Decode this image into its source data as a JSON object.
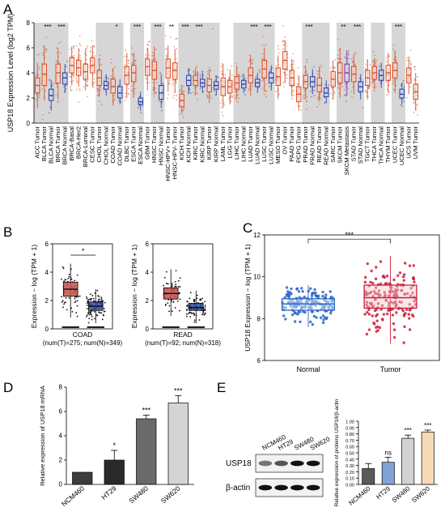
{
  "panels": {
    "A": {
      "letter": "A"
    },
    "B": {
      "letter": "B"
    },
    "C": {
      "letter": "C"
    },
    "D": {
      "letter": "D"
    },
    "E": {
      "letter": "E"
    }
  },
  "chart_data": [
    {
      "id": "A",
      "type": "box",
      "ylabel": "USP18 Expression Level (log2 TPM)",
      "ylim": [
        0,
        8
      ],
      "yticks": [
        0,
        2,
        4,
        6,
        8
      ],
      "categories": [
        "ACC Tumor",
        "BLCA Tumor",
        "BLCA Normal",
        "BRCA Tumor",
        "BRCA Normal",
        "BRCA-Basal",
        "BRCA-Her2",
        "BRCA-Luminal",
        "CESC Tumor",
        "CHOL Tumor",
        "CHOL Normal",
        "COAD Tumor",
        "COAD Normal",
        "DLBC Tumor",
        "ESCA Tumor",
        "ESCA Normal",
        "GBM Tumor",
        "HNSC Tumor",
        "HNSC Normal",
        "HNSC-HPV+ Tumor",
        "HNSC-HPV- Tumor",
        "KICH Tumor",
        "KICH Normal",
        "KIRC Tumor",
        "KIRC Normal",
        "KIRP Tumor",
        "KIRP Normal",
        "LAML Tumor",
        "LGG Tumor",
        "LIHC Tumor",
        "LIHC Normal",
        "LUAD Tumor",
        "LUAD Normal",
        "LUSC Tumor",
        "LUSC Normal",
        "MESO Tumor",
        "OV Tumor",
        "PAAD Tumor",
        "PCPG Tumor",
        "PRAD Tumor",
        "PRAD Normal",
        "READ Tumor",
        "READ Normal",
        "SARC Tumor",
        "SKCM Tumor",
        "SKCM Metastasis",
        "STAD Tumor",
        "STAD Normal",
        "TGCT Tumor",
        "THCA Tumor",
        "THCA Normal",
        "THYM Tumor",
        "UCEC Tumor",
        "UCEC Normal",
        "UCS Tumor",
        "UVM Tumor"
      ],
      "median": [
        3.0,
        3.9,
        2.2,
        4.0,
        3.6,
        4.6,
        4.4,
        4.1,
        4.6,
        3.6,
        3.0,
        2.9,
        2.4,
        3.8,
        4.0,
        1.7,
        4.5,
        4.2,
        2.4,
        4.4,
        4.2,
        1.8,
        3.4,
        3.4,
        3.2,
        3.0,
        3.0,
        2.9,
        2.9,
        3.2,
        3.1,
        3.8,
        3.2,
        4.3,
        3.6,
        3.7,
        5.0,
        3.6,
        2.3,
        3.3,
        3.3,
        3.0,
        2.4,
        3.5,
        4.0,
        4.0,
        3.9,
        2.9,
        3.6,
        4.0,
        3.8,
        4.0,
        4.2,
        2.3,
        3.8,
        2.5
      ],
      "q1": [
        2.4,
        3.0,
        1.8,
        3.2,
        3.1,
        4.0,
        3.8,
        3.5,
        4.0,
        3.0,
        2.7,
        2.4,
        2.0,
        3.1,
        3.3,
        1.5,
        3.8,
        3.5,
        1.9,
        3.6,
        3.5,
        1.3,
        3.0,
        3.0,
        2.9,
        2.5,
        2.7,
        2.2,
        2.4,
        2.7,
        2.8,
        3.2,
        2.9,
        3.6,
        3.2,
        3.0,
        4.3,
        3.0,
        1.7,
        2.8,
        2.9,
        2.5,
        2.1,
        2.9,
        3.2,
        3.3,
        3.3,
        2.5,
        3.0,
        3.5,
        3.4,
        3.4,
        3.6,
        2.0,
        3.2,
        1.9
      ],
      "q3": [
        3.6,
        4.7,
        2.7,
        4.7,
        4.0,
        5.2,
        5.0,
        4.7,
        5.2,
        4.2,
        3.3,
        3.5,
        2.9,
        4.5,
        4.6,
        2.0,
        5.1,
        4.9,
        3.0,
        5.1,
        4.8,
        2.3,
        3.8,
        3.8,
        3.5,
        3.5,
        3.3,
        3.6,
        3.4,
        3.7,
        3.4,
        4.4,
        3.5,
        5.0,
        4.0,
        4.4,
        5.7,
        4.2,
        2.9,
        3.8,
        3.7,
        3.6,
        2.8,
        4.1,
        4.8,
        4.7,
        4.5,
        3.3,
        4.2,
        4.5,
        4.2,
        4.6,
        4.8,
        2.7,
        4.4,
        3.1
      ],
      "wlo": [
        1.2,
        1.8,
        1.0,
        1.9,
        2.4,
        3.0,
        2.9,
        2.6,
        2.9,
        2.1,
        2.2,
        1.4,
        1.5,
        2.0,
        2.2,
        1.0,
        2.6,
        2.3,
        1.2,
        2.5,
        2.4,
        0.8,
        2.3,
        2.3,
        2.4,
        1.6,
        2.2,
        1.2,
        1.5,
        1.9,
        2.4,
        2.2,
        2.4,
        2.5,
        2.6,
        2.0,
        3.2,
        2.1,
        1.0,
        1.9,
        2.3,
        1.7,
        1.6,
        1.9,
        2.0,
        2.2,
        2.3,
        1.9,
        1.9,
        2.7,
        2.8,
        2.4,
        2.4,
        1.5,
        2.3,
        1.0
      ],
      "whi": [
        4.8,
        6.2,
        3.4,
        6.0,
        4.7,
        6.1,
        6.0,
        5.9,
        6.2,
        5.1,
        3.9,
        4.4,
        3.5,
        5.6,
        5.6,
        2.5,
        6.0,
        6.1,
        3.9,
        6.2,
        5.9,
        3.0,
        4.4,
        4.4,
        4.0,
        4.3,
        3.8,
        4.7,
        4.2,
        4.5,
        3.9,
        5.4,
        4.0,
        6.0,
        4.6,
        5.4,
        6.6,
        5.1,
        3.7,
        4.6,
        4.3,
        4.5,
        3.4,
        5.0,
        6.0,
        5.8,
        5.5,
        3.9,
        5.1,
        5.2,
        4.8,
        5.6,
        5.8,
        3.2,
        5.3,
        4.0
      ],
      "group": [
        "T",
        "T",
        "N",
        "T",
        "N",
        "T",
        "T",
        "T",
        "T",
        "T",
        "N",
        "T",
        "N",
        "T",
        "T",
        "N",
        "T",
        "T",
        "N",
        "T",
        "T",
        "T",
        "N",
        "T",
        "N",
        "T",
        "N",
        "T",
        "T",
        "T",
        "N",
        "T",
        "N",
        "T",
        "N",
        "T",
        "T",
        "T",
        "T",
        "T",
        "N",
        "T",
        "N",
        "T",
        "T",
        "M",
        "T",
        "N",
        "T",
        "T",
        "N",
        "T",
        "T",
        "N",
        "T",
        "T"
      ],
      "shaded": [
        true,
        true,
        true,
        true,
        true,
        false,
        false,
        false,
        false,
        true,
        true,
        true,
        true,
        false,
        true,
        true,
        false,
        true,
        true,
        false,
        false,
        true,
        true,
        true,
        true,
        true,
        true,
        false,
        false,
        true,
        true,
        true,
        true,
        true,
        true,
        false,
        false,
        false,
        false,
        true,
        true,
        true,
        true,
        false,
        true,
        true,
        true,
        true,
        false,
        true,
        true,
        false,
        true,
        true,
        false,
        false
      ],
      "significance": [
        {
          "cats": [
            1,
            2
          ],
          "label": "***"
        },
        {
          "cats": [
            3,
            4
          ],
          "label": "***"
        },
        {
          "cats": [
            11,
            12
          ],
          "label": "*"
        },
        {
          "cats": [
            14,
            15
          ],
          "label": "***"
        },
        {
          "cats": [
            17,
            18
          ],
          "label": "***"
        },
        {
          "cats": [
            19,
            20
          ],
          "label": "**"
        },
        {
          "cats": [
            21,
            22
          ],
          "label": "***"
        },
        {
          "cats": [
            23,
            24
          ],
          "label": "***"
        },
        {
          "cats": [
            25,
            26
          ],
          "label": "."
        },
        {
          "cats": [
            31,
            32
          ],
          "label": "***"
        },
        {
          "cats": [
            33,
            34
          ],
          "label": "***"
        },
        {
          "cats": [
            39,
            40
          ],
          "label": "***"
        },
        {
          "cats": [
            44,
            45
          ],
          "label": "**"
        },
        {
          "cats": [
            46,
            47
          ],
          "label": "***"
        },
        {
          "cats": [
            52,
            53
          ],
          "label": "***"
        }
      ],
      "colors": {
        "tumor": "#d9532b",
        "normal": "#2f44a8",
        "metastasis": "#7b3fa6",
        "shade": "#d6d6d6"
      }
    },
    {
      "id": "B-COAD",
      "type": "box",
      "ylabel": "Expression − log (TPM + 1)",
      "categories": [
        "Tumor",
        "Normal"
      ],
      "ylim": [
        0,
        6
      ],
      "xlabel": "COAD",
      "sublabel": "(num(T)=275; num(N)=349)",
      "median": [
        2.8,
        1.6
      ],
      "q1": [
        2.3,
        1.3
      ],
      "q3": [
        3.3,
        1.9
      ],
      "wlo": [
        0.8,
        0.4
      ],
      "whi": [
        4.6,
        2.8
      ],
      "significance": "*",
      "colors": [
        "#c2524e",
        "#2f4c9c"
      ]
    },
    {
      "id": "B-READ",
      "type": "box",
      "ylabel": "Expression − log (TPM + 1)",
      "categories": [
        "Tumor",
        "Normal"
      ],
      "ylim": [
        0,
        6
      ],
      "xlabel": "READ",
      "sublabel": "(num(T)=92; num(N)=318)",
      "median": [
        2.5,
        1.5
      ],
      "q1": [
        2.1,
        1.3
      ],
      "q3": [
        2.9,
        1.8
      ],
      "wlo": [
        0.9,
        0.4
      ],
      "whi": [
        4.2,
        2.7
      ],
      "colors": [
        "#c2524e",
        "#2f4c9c"
      ]
    },
    {
      "id": "C",
      "type": "box",
      "ylabel": "USP18 Expression − log (TPM + 1)",
      "categories": [
        "Normal",
        "Tumor"
      ],
      "ylim": [
        6,
        12
      ],
      "yticks": [
        6,
        8,
        10,
        12
      ],
      "median": [
        8.7,
        9.0
      ],
      "q1": [
        8.4,
        8.5
      ],
      "q3": [
        8.95,
        9.6
      ],
      "wlo": [
        7.6,
        6.8
      ],
      "whi": [
        9.6,
        11.0
      ],
      "significance": "***",
      "colors": [
        "#2a66c4",
        "#c8203a"
      ]
    },
    {
      "id": "D",
      "type": "bar",
      "ylabel": "Relative expression of USP18 mRNA",
      "categories": [
        "NCM460",
        "HT29",
        "SW480",
        "SW620"
      ],
      "values": [
        1.0,
        2.0,
        5.4,
        6.7
      ],
      "errors": [
        0.0,
        0.8,
        0.3,
        0.6
      ],
      "significance": [
        "",
        "*",
        "***",
        "***"
      ],
      "ylim": [
        0,
        8
      ],
      "yticks": [
        0,
        2,
        4,
        6,
        8
      ],
      "colors": [
        "#3c3c3c",
        "#2a2a2a",
        "#6a6a6a",
        "#d4d4d4"
      ]
    },
    {
      "id": "E-blot",
      "type": "table",
      "lanes": [
        "NCM460",
        "HT29",
        "SW480",
        "SW620"
      ],
      "rows": [
        "USP18",
        "β-actin"
      ]
    },
    {
      "id": "E",
      "type": "bar",
      "ylabel": "Relative expression of proteins USP18/β-actin",
      "categories": [
        "NCM460",
        "HT29",
        "SW480",
        "SW620"
      ],
      "values": [
        0.25,
        0.35,
        0.73,
        0.83
      ],
      "errors": [
        0.08,
        0.08,
        0.05,
        0.03
      ],
      "significance": [
        "",
        "ns",
        "***",
        "***"
      ],
      "ylim": [
        0,
        1.0
      ],
      "yticks": [
        0.0,
        0.1,
        0.2,
        0.3,
        0.4,
        0.5,
        0.6,
        0.7,
        0.8,
        0.9,
        1.0
      ],
      "colors": [
        "#5a5a5a",
        "#7fa3d6",
        "#d2d2d2",
        "#f7d9b5"
      ]
    }
  ]
}
